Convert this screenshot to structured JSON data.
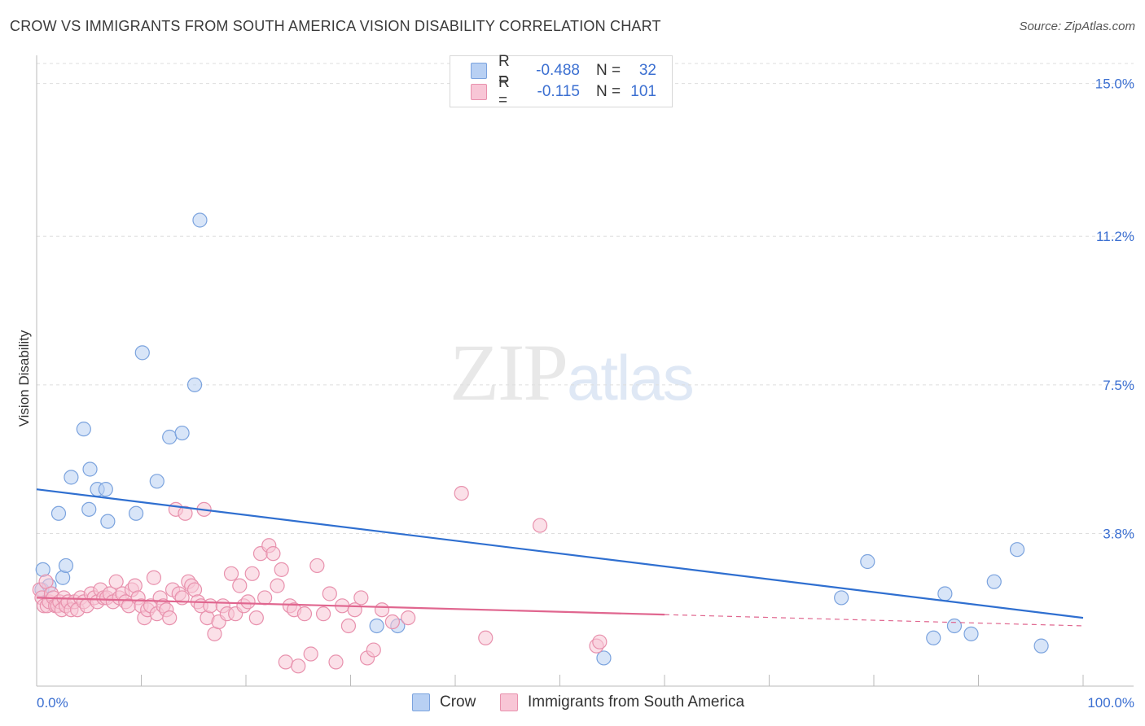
{
  "title": "CROW VS IMMIGRANTS FROM SOUTH AMERICA VISION DISABILITY CORRELATION CHART",
  "source": "Source: ZipAtlas.com",
  "watermark": {
    "zip": "ZIP",
    "atlas": "atlas"
  },
  "legend": {
    "r_label": "R =",
    "n_label": "N =",
    "series": [
      {
        "name": "Crow",
        "r": "-0.488",
        "n": "32",
        "fill": "#b8d0f3",
        "stroke": "#7ba3de"
      },
      {
        "name": "Immigrants from South America",
        "r": "-0.115",
        "n": "101",
        "fill": "#f8c6d6",
        "stroke": "#e891ad"
      }
    ]
  },
  "chart_data": {
    "type": "scatter",
    "title": "CROW VS IMMIGRANTS FROM SOUTH AMERICA VISION DISABILITY CORRELATION CHART",
    "xlabel": "",
    "ylabel": "Vision Disability",
    "xlim": [
      0,
      100
    ],
    "ylim": [
      0,
      15.5
    ],
    "x_tick_labels": [
      "0.0%",
      "100.0%"
    ],
    "y_ticks": [
      3.8,
      7.5,
      11.2,
      15.0
    ],
    "y_tick_labels": [
      "3.8%",
      "7.5%",
      "11.2%",
      "15.0%"
    ],
    "grid": true,
    "legend_position": "top-center",
    "series": [
      {
        "name": "Crow",
        "color": "#7ba3de",
        "line_color": "#2f6fd0",
        "trend": {
          "x": [
            0,
            100
          ],
          "y": [
            4.9,
            1.7
          ],
          "dashed_from": null
        },
        "points": [
          [
            0.5,
            2.4
          ],
          [
            0.6,
            2.9
          ],
          [
            1.2,
            2.5
          ],
          [
            2.1,
            4.3
          ],
          [
            2.5,
            2.7
          ],
          [
            2.8,
            3.0
          ],
          [
            3.3,
            5.2
          ],
          [
            4.5,
            6.4
          ],
          [
            5.1,
            5.4
          ],
          [
            5.0,
            4.4
          ],
          [
            5.8,
            4.9
          ],
          [
            6.6,
            4.9
          ],
          [
            6.8,
            4.1
          ],
          [
            9.5,
            4.3
          ],
          [
            10.1,
            8.3
          ],
          [
            11.5,
            5.1
          ],
          [
            12.7,
            6.2
          ],
          [
            13.9,
            6.3
          ],
          [
            15.1,
            7.5
          ],
          [
            15.6,
            11.6
          ],
          [
            32.5,
            1.5
          ],
          [
            34.5,
            1.5
          ],
          [
            54.2,
            0.7
          ],
          [
            76.9,
            2.2
          ],
          [
            79.4,
            3.1
          ],
          [
            85.7,
            1.2
          ],
          [
            86.8,
            2.3
          ],
          [
            87.7,
            1.5
          ],
          [
            89.3,
            1.3
          ],
          [
            91.5,
            2.6
          ],
          [
            93.7,
            3.4
          ],
          [
            96.0,
            1.0
          ]
        ]
      },
      {
        "name": "Immigrants from South America",
        "color": "#e891ad",
        "line_color": "#e0668f",
        "trend": {
          "x": [
            0,
            100
          ],
          "y": [
            2.2,
            1.5
          ],
          "dashed_from": 60
        },
        "points": [
          [
            0.3,
            2.4
          ],
          [
            0.5,
            2.2
          ],
          [
            0.7,
            2.0
          ],
          [
            0.9,
            2.6
          ],
          [
            1.0,
            2.0
          ],
          [
            1.2,
            2.1
          ],
          [
            1.4,
            2.3
          ],
          [
            1.6,
            2.2
          ],
          [
            1.8,
            2.0
          ],
          [
            2.0,
            2.0
          ],
          [
            2.2,
            2.1
          ],
          [
            2.4,
            1.9
          ],
          [
            2.6,
            2.2
          ],
          [
            2.8,
            2.0
          ],
          [
            3.0,
            2.1
          ],
          [
            3.3,
            1.9
          ],
          [
            3.6,
            2.1
          ],
          [
            3.9,
            1.9
          ],
          [
            4.2,
            2.2
          ],
          [
            4.5,
            2.1
          ],
          [
            4.8,
            2.0
          ],
          [
            5.2,
            2.3
          ],
          [
            5.5,
            2.2
          ],
          [
            5.8,
            2.1
          ],
          [
            6.1,
            2.4
          ],
          [
            6.4,
            2.2
          ],
          [
            6.7,
            2.2
          ],
          [
            7.0,
            2.3
          ],
          [
            7.3,
            2.1
          ],
          [
            7.6,
            2.6
          ],
          [
            7.9,
            2.2
          ],
          [
            8.2,
            2.3
          ],
          [
            8.5,
            2.1
          ],
          [
            8.8,
            2.0
          ],
          [
            9.1,
            2.4
          ],
          [
            9.4,
            2.5
          ],
          [
            9.7,
            2.2
          ],
          [
            10.0,
            2.0
          ],
          [
            10.3,
            1.7
          ],
          [
            10.6,
            1.9
          ],
          [
            10.9,
            2.0
          ],
          [
            11.2,
            2.7
          ],
          [
            11.5,
            1.8
          ],
          [
            11.8,
            2.2
          ],
          [
            12.1,
            2.0
          ],
          [
            12.4,
            1.9
          ],
          [
            12.7,
            1.7
          ],
          [
            13.0,
            2.4
          ],
          [
            13.3,
            4.4
          ],
          [
            13.6,
            2.3
          ],
          [
            13.9,
            2.2
          ],
          [
            14.2,
            4.3
          ],
          [
            14.5,
            2.6
          ],
          [
            14.8,
            2.5
          ],
          [
            15.1,
            2.4
          ],
          [
            15.4,
            2.1
          ],
          [
            15.7,
            2.0
          ],
          [
            16.0,
            4.4
          ],
          [
            16.3,
            1.7
          ],
          [
            16.6,
            2.0
          ],
          [
            17.0,
            1.3
          ],
          [
            17.4,
            1.6
          ],
          [
            17.8,
            2.0
          ],
          [
            18.2,
            1.8
          ],
          [
            18.6,
            2.8
          ],
          [
            19.0,
            1.8
          ],
          [
            19.4,
            2.5
          ],
          [
            19.8,
            2.0
          ],
          [
            20.2,
            2.1
          ],
          [
            20.6,
            2.8
          ],
          [
            21.0,
            1.7
          ],
          [
            21.4,
            3.3
          ],
          [
            21.8,
            2.2
          ],
          [
            22.2,
            3.5
          ],
          [
            22.6,
            3.3
          ],
          [
            23.0,
            2.5
          ],
          [
            23.4,
            2.9
          ],
          [
            23.8,
            0.6
          ],
          [
            24.2,
            2.0
          ],
          [
            24.6,
            1.9
          ],
          [
            25.0,
            0.5
          ],
          [
            25.6,
            1.8
          ],
          [
            26.2,
            0.8
          ],
          [
            26.8,
            3.0
          ],
          [
            27.4,
            1.8
          ],
          [
            28.0,
            2.3
          ],
          [
            28.6,
            0.6
          ],
          [
            29.2,
            2.0
          ],
          [
            29.8,
            1.5
          ],
          [
            30.4,
            1.9
          ],
          [
            31.0,
            2.2
          ],
          [
            31.6,
            0.7
          ],
          [
            32.2,
            0.9
          ],
          [
            33.0,
            1.9
          ],
          [
            34.0,
            1.6
          ],
          [
            35.5,
            1.7
          ],
          [
            40.6,
            4.8
          ],
          [
            42.9,
            1.2
          ],
          [
            48.1,
            4.0
          ],
          [
            53.5,
            1.0
          ],
          [
            53.8,
            1.1
          ]
        ]
      }
    ]
  }
}
